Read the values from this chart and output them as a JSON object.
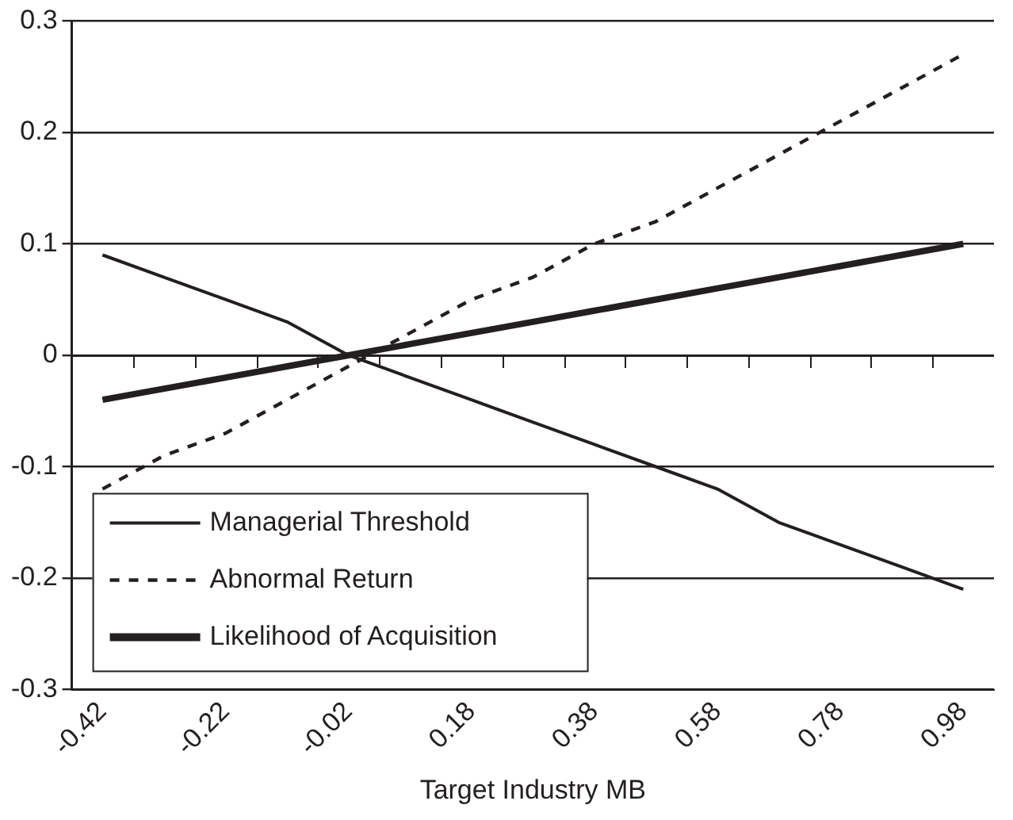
{
  "chart_data": {
    "type": "line",
    "xlabel": "Target Industry MB",
    "categories": [
      "-0.42",
      null,
      "-0.22",
      null,
      "-0.02",
      null,
      "0.18",
      null,
      "0.38",
      null,
      "0.58",
      null,
      "0.78",
      null,
      "0.98"
    ],
    "series": [
      {
        "name": "Managerial Threshold",
        "color": "#231f20",
        "line_style": "solid",
        "values": [
          0.09,
          0.07,
          0.05,
          0.03,
          0.0,
          -0.02,
          -0.04,
          -0.06,
          -0.08,
          -0.1,
          -0.12,
          -0.15,
          -0.17,
          -0.19,
          -0.21
        ]
      },
      {
        "name": "Abnormal Return",
        "color": "#231f20",
        "line_style": "dashed",
        "values": [
          -0.12,
          -0.09,
          -0.07,
          -0.04,
          -0.01,
          0.02,
          0.05,
          0.07,
          0.1,
          0.12,
          0.15,
          0.18,
          0.21,
          0.24,
          0.27
        ]
      },
      {
        "name": "Likelihood of Acquisition",
        "color": "#231f20",
        "line_style": "solid",
        "values": [
          -0.04,
          -0.03,
          -0.02,
          -0.01,
          0.0,
          0.01,
          0.02,
          0.03,
          0.04,
          0.05,
          0.06,
          0.07,
          0.08,
          0.09,
          0.1
        ]
      }
    ],
    "ylim": [
      -0.3,
      0.3
    ],
    "yticks": [
      -0.3,
      -0.2,
      -0.1,
      0,
      0.1,
      0.2,
      0.3
    ],
    "grid": "y",
    "legend": "bottom left",
    "marker": "none"
  }
}
